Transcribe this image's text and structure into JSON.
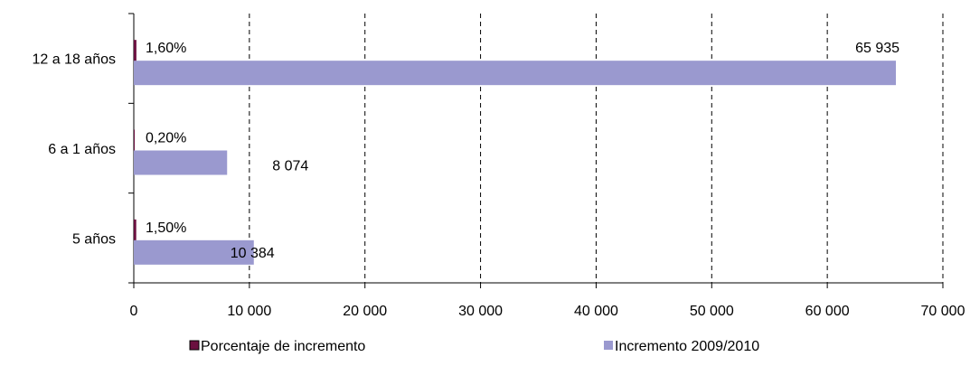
{
  "chart_data": {
    "type": "bar",
    "orientation": "horizontal",
    "categories": [
      "12 a 18 años",
      "6 a 1 años",
      "5 años"
    ],
    "series": [
      {
        "name": "Porcentaje de incremento",
        "values": [
          1.6,
          0.2,
          1.5
        ],
        "labels": [
          "1,60%",
          "0,20%",
          "1,50%"
        ],
        "color": "#6b1040"
      },
      {
        "name": "Incremento 2009/2010",
        "values": [
          65935,
          8074,
          10384
        ],
        "labels": [
          "65 935",
          "8 074",
          "10 384"
        ],
        "color": "#9a99cf"
      }
    ],
    "xlim": [
      0,
      70000
    ],
    "xticks": [
      0,
      10000,
      20000,
      30000,
      40000,
      50000,
      60000,
      70000
    ],
    "xtick_labels": [
      "0",
      "10 000",
      "20 000",
      "30 000",
      "40 000",
      "50 000",
      "60 000",
      "70 000"
    ],
    "grid": "vertical-dashed",
    "legend": "bottom",
    "title": "",
    "xlabel": "",
    "ylabel": ""
  }
}
